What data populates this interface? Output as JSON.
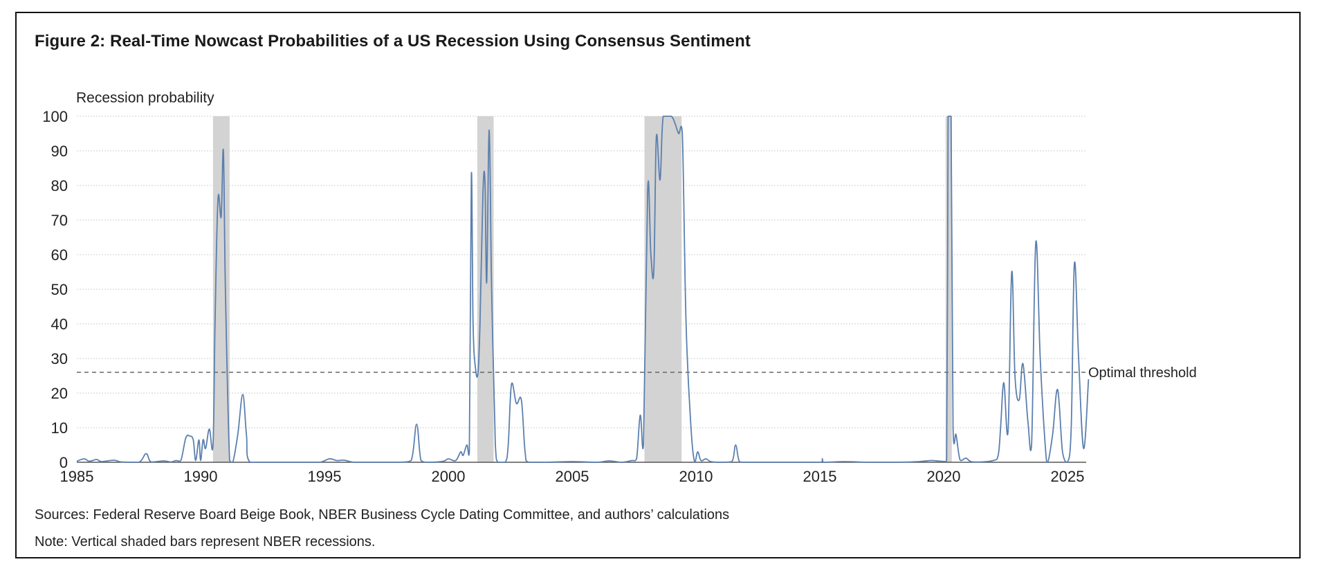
{
  "figure": {
    "title": "Figure 2: Real-Time Nowcast Probabilities of a US Recession Using Consensus Sentiment",
    "source": "Sources: Federal Reserve Board Beige Book, NBER Business Cycle Dating Committee, and authors’ calculations",
    "note": "Note: Vertical shaded bars represent NBER recessions."
  },
  "colors": {
    "line": "#5b7fae",
    "recession_shade": "#d3d3d3",
    "grid": "#cfcfcf",
    "threshold": "#666666",
    "axis": "#555555"
  },
  "chart_data": {
    "type": "line",
    "title": "Figure 2: Real-Time Nowcast Probabilities of a US Recession Using Consensus Sentiment",
    "xlabel": "",
    "ylabel": "Recession probability",
    "xlim": [
      1985,
      2025.9
    ],
    "ylim": [
      0,
      100
    ],
    "grid": true,
    "x_ticks": [
      1985,
      1990,
      1995,
      2000,
      2005,
      2010,
      2015,
      2020,
      2025
    ],
    "y_ticks": [
      0,
      10,
      20,
      30,
      40,
      50,
      60,
      70,
      80,
      90,
      100
    ],
    "threshold": {
      "label": "Optimal threshold",
      "value": 26
    },
    "recessions": [
      {
        "start": 1990.5,
        "end": 1991.17
      },
      {
        "start": 2001.17,
        "end": 2001.83
      },
      {
        "start": 2007.92,
        "end": 2009.42
      },
      {
        "start": 2020.08,
        "end": 2020.33
      }
    ],
    "series": [
      {
        "name": "Recession probability",
        "points": [
          [
            1985.0,
            0.3
          ],
          [
            1985.3,
            1.0
          ],
          [
            1985.5,
            0.3
          ],
          [
            1985.8,
            0.8
          ],
          [
            1986.0,
            0.2
          ],
          [
            1986.5,
            0.6
          ],
          [
            1986.8,
            0.1
          ],
          [
            1987.5,
            0.0
          ],
          [
            1987.8,
            2.5
          ],
          [
            1988.0,
            0.1
          ],
          [
            1988.5,
            0.4
          ],
          [
            1988.8,
            0.1
          ],
          [
            1989.0,
            0.5
          ],
          [
            1989.2,
            0.5
          ],
          [
            1989.4,
            7.0
          ],
          [
            1989.55,
            7.6
          ],
          [
            1989.7,
            6.5
          ],
          [
            1989.8,
            0.5
          ],
          [
            1989.93,
            6.5
          ],
          [
            1990.0,
            0.5
          ],
          [
            1990.1,
            6.5
          ],
          [
            1990.2,
            4.0
          ],
          [
            1990.35,
            9.6
          ],
          [
            1990.5,
            5.0
          ],
          [
            1990.58,
            40.0
          ],
          [
            1990.7,
            76.0
          ],
          [
            1990.83,
            71.0
          ],
          [
            1990.92,
            90.0
          ],
          [
            1991.0,
            50.0
          ],
          [
            1991.17,
            0.5
          ],
          [
            1991.3,
            0.0
          ],
          [
            1991.5,
            8.0
          ],
          [
            1991.7,
            19.6
          ],
          [
            1991.85,
            8.0
          ],
          [
            1992.0,
            0.0
          ],
          [
            1993.0,
            0.0
          ],
          [
            1994.0,
            0.0
          ],
          [
            1994.8,
            0.0
          ],
          [
            1995.2,
            1.0
          ],
          [
            1995.5,
            0.5
          ],
          [
            1995.8,
            0.6
          ],
          [
            1996.2,
            0.0
          ],
          [
            1997.0,
            0.0
          ],
          [
            1998.0,
            0.0
          ],
          [
            1998.5,
            0.5
          ],
          [
            1998.72,
            11.0
          ],
          [
            1998.9,
            0.5
          ],
          [
            1999.2,
            0.0
          ],
          [
            1999.8,
            0.3
          ],
          [
            2000.0,
            1.0
          ],
          [
            2000.3,
            0.5
          ],
          [
            2000.5,
            3.0
          ],
          [
            2000.6,
            2.0
          ],
          [
            2000.75,
            5.0
          ],
          [
            2000.85,
            3.0
          ],
          [
            2000.93,
            83.0
          ],
          [
            2001.0,
            40.0
          ],
          [
            2001.1,
            27.0
          ],
          [
            2001.2,
            26.0
          ],
          [
            2001.28,
            40.0
          ],
          [
            2001.4,
            78.0
          ],
          [
            2001.48,
            81.0
          ],
          [
            2001.55,
            52.0
          ],
          [
            2001.65,
            96.0
          ],
          [
            2001.75,
            50.0
          ],
          [
            2001.9,
            5.0
          ],
          [
            2002.0,
            0.0
          ],
          [
            2002.3,
            0.0
          ],
          [
            2002.42,
            5.0
          ],
          [
            2002.55,
            22.5
          ],
          [
            2002.75,
            17.0
          ],
          [
            2002.95,
            18.0
          ],
          [
            2003.1,
            3.0
          ],
          [
            2003.25,
            0.0
          ],
          [
            2004.0,
            0.0
          ],
          [
            2005.0,
            0.2
          ],
          [
            2006.0,
            0.0
          ],
          [
            2006.5,
            0.4
          ],
          [
            2007.0,
            0.0
          ],
          [
            2007.4,
            0.5
          ],
          [
            2007.6,
            1.0
          ],
          [
            2007.75,
            13.6
          ],
          [
            2007.88,
            5.0
          ],
          [
            2008.05,
            79.0
          ],
          [
            2008.18,
            60.0
          ],
          [
            2008.3,
            55.6
          ],
          [
            2008.4,
            94.0
          ],
          [
            2008.55,
            81.6
          ],
          [
            2008.68,
            100.0
          ],
          [
            2009.0,
            100.0
          ],
          [
            2009.15,
            98.0
          ],
          [
            2009.3,
            95.0
          ],
          [
            2009.45,
            95.0
          ],
          [
            2009.6,
            40.0
          ],
          [
            2009.8,
            10.0
          ],
          [
            2009.95,
            0.0
          ],
          [
            2010.07,
            3.0
          ],
          [
            2010.2,
            0.5
          ],
          [
            2010.4,
            1.0
          ],
          [
            2010.6,
            0.2
          ],
          [
            2011.0,
            0.0
          ],
          [
            2011.45,
            0.2
          ],
          [
            2011.6,
            5.0
          ],
          [
            2011.75,
            0.2
          ],
          [
            2012.0,
            0.0
          ],
          [
            2013.0,
            0.0
          ],
          [
            2014.0,
            0.0
          ],
          [
            2015.0,
            0.0
          ],
          [
            2015.1,
            1.0
          ],
          [
            2015.2,
            0.0
          ],
          [
            2016.0,
            0.2
          ],
          [
            2017.0,
            0.0
          ],
          [
            2018.0,
            0.0
          ],
          [
            2019.0,
            0.2
          ],
          [
            2019.5,
            0.5
          ],
          [
            2019.9,
            0.3
          ],
          [
            2020.12,
            0.5
          ],
          [
            2020.18,
            100.0
          ],
          [
            2020.3,
            100.0
          ],
          [
            2020.38,
            10.0
          ],
          [
            2020.5,
            8.0
          ],
          [
            2020.62,
            2.0
          ],
          [
            2020.7,
            0.5
          ],
          [
            2020.9,
            1.2
          ],
          [
            2021.1,
            0.2
          ],
          [
            2021.5,
            0.1
          ],
          [
            2022.0,
            0.5
          ],
          [
            2022.2,
            2.0
          ],
          [
            2022.3,
            10.0
          ],
          [
            2022.43,
            23.0
          ],
          [
            2022.6,
            9.0
          ],
          [
            2022.75,
            55.0
          ],
          [
            2022.88,
            25.0
          ],
          [
            2023.05,
            18.0
          ],
          [
            2023.2,
            28.5
          ],
          [
            2023.4,
            12.0
          ],
          [
            2023.55,
            5.0
          ],
          [
            2023.72,
            63.5
          ],
          [
            2023.9,
            30.0
          ],
          [
            2024.1,
            5.0
          ],
          [
            2024.2,
            0.0
          ],
          [
            2024.4,
            8.0
          ],
          [
            2024.6,
            21.0
          ],
          [
            2024.8,
            3.0
          ],
          [
            2025.0,
            0.0
          ],
          [
            2025.15,
            10.0
          ],
          [
            2025.28,
            57.5
          ],
          [
            2025.45,
            30.0
          ],
          [
            2025.65,
            4.0
          ],
          [
            2025.85,
            24.0
          ]
        ]
      }
    ]
  }
}
